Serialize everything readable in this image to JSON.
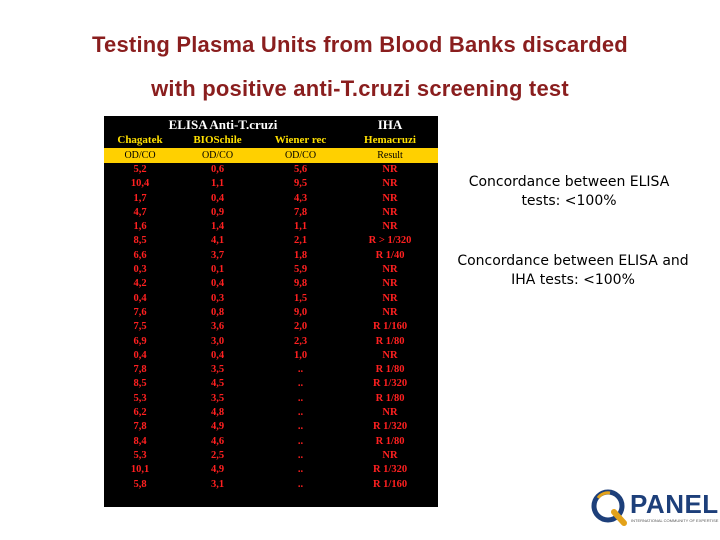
{
  "title": {
    "line1": "Testing Plasma Units from Blood Banks discarded",
    "line2": "with positive anti-T.cruzi screening test"
  },
  "table": {
    "group_headers": [
      "ELISA Anti-T.cruzi",
      "IHA"
    ],
    "columns": [
      "Chagatek",
      "BIOSchile",
      "Wiener rec",
      "Hemacruzi"
    ],
    "units": [
      "OD/CO",
      "OD/CO",
      "OD/CO",
      "Result"
    ],
    "rows": [
      [
        "5,2",
        "0,6",
        "5,6",
        "NR"
      ],
      [
        "10,4",
        "1,1",
        "9,5",
        "NR"
      ],
      [
        "1,7",
        "0,4",
        "4,3",
        "NR"
      ],
      [
        "4,7",
        "0,9",
        "7,8",
        "NR"
      ],
      [
        "1,6",
        "1,4",
        "1,1",
        "NR"
      ],
      [
        "8,5",
        "4,1",
        "2,1",
        "R > 1/320"
      ],
      [
        "6,6",
        "3,7",
        "1,8",
        "R 1/40"
      ],
      [
        "0,3",
        "0,1",
        "5,9",
        "NR"
      ],
      [
        "4,2",
        "0,4",
        "9,8",
        "NR"
      ],
      [
        "0,4",
        "0,3",
        "1,5",
        "NR"
      ],
      [
        "7,6",
        "0,8",
        "9,0",
        "NR"
      ],
      [
        "7,5",
        "3,6",
        "2,0",
        "R 1/160"
      ],
      [
        "6,9",
        "3,0",
        "2,3",
        "R 1/80"
      ],
      [
        "0,4",
        "0,4",
        "1,0",
        "NR"
      ],
      [
        "7,8",
        "3,5",
        "..",
        "R 1/80"
      ],
      [
        "8,5",
        "4,5",
        "..",
        "R 1/320"
      ],
      [
        "5,3",
        "3,5",
        "..",
        "R 1/80"
      ],
      [
        "6,2",
        "4,8",
        "..",
        "NR"
      ],
      [
        "7,8",
        "4,9",
        "..",
        "R 1/320"
      ],
      [
        "8,4",
        "4,6",
        "..",
        "R 1/80"
      ],
      [
        "5,3",
        "2,5",
        "..",
        "NR"
      ],
      [
        "10,1",
        "4,9",
        "..",
        "R 1/320"
      ],
      [
        "5,8",
        "3,1",
        "..",
        "R 1/160"
      ]
    ]
  },
  "notes": {
    "note1": "Concordance between ELISA tests: <100%",
    "note2": "Concordance between ELISA and IHA tests: <100%"
  },
  "logo": {
    "name": "PANEL",
    "tagline": "INTERNATIONAL COMMUNITY OF EXPERTISE",
    "colors": {
      "blue": "#1d3f7a",
      "gold": "#e3a21a"
    }
  }
}
